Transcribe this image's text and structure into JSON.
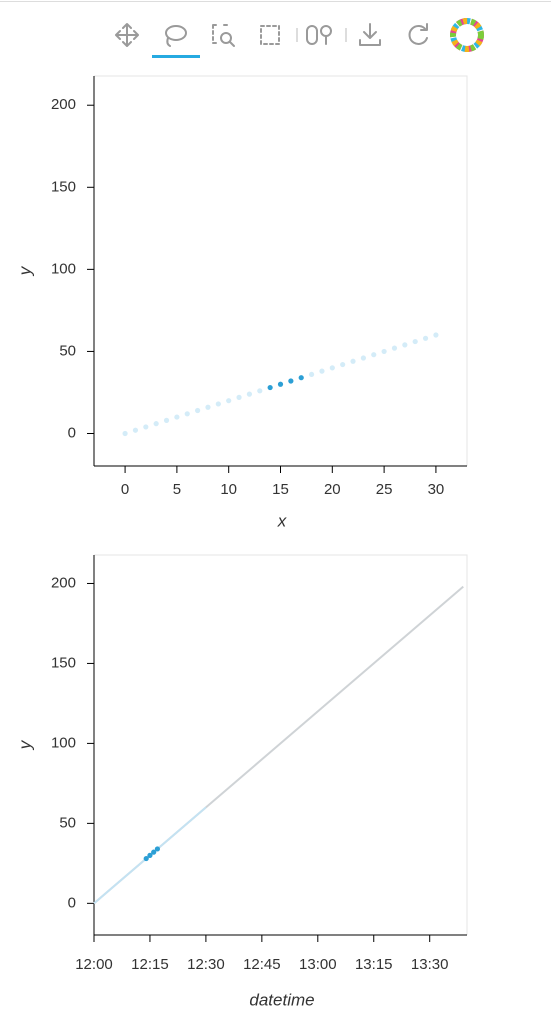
{
  "chart_data": [
    {
      "type": "scatter",
      "xlabel": "x",
      "ylabel": "y",
      "xlim": [
        -3,
        33
      ],
      "ylim": [
        -19.8,
        217.8
      ],
      "xticks": [
        0,
        5,
        10,
        15,
        20,
        25,
        30
      ],
      "yticks": [
        0,
        50,
        100,
        150,
        200
      ],
      "series": [
        {
          "color": "#d4ecf8",
          "x": [
            0,
            1,
            2,
            3,
            4,
            5,
            6,
            7,
            8,
            9,
            10,
            11,
            12,
            13,
            18,
            19,
            20,
            21,
            22,
            23,
            24,
            25,
            26,
            27,
            28,
            29,
            30
          ],
          "values": [
            0,
            2,
            4,
            6,
            8,
            10,
            12,
            14,
            16,
            18,
            20,
            22,
            24,
            26,
            36,
            38,
            40,
            42,
            44,
            46,
            48,
            50,
            52,
            54,
            56,
            58,
            60
          ]
        },
        {
          "color": "#2c9fd5",
          "x": [
            14,
            15,
            16,
            17
          ],
          "values": [
            28,
            30,
            32,
            34
          ]
        }
      ]
    },
    {
      "type": "line",
      "xlabel": "datetime",
      "ylabel": "y",
      "xlim": [
        "12:00",
        "13:40"
      ],
      "ylim": [
        -19.8,
        217.8
      ],
      "xticks": [
        "12:00",
        "12:15",
        "12:30",
        "12:45",
        "13:00",
        "13:15",
        "13:30"
      ],
      "yticks": [
        0,
        50,
        100,
        150,
        200
      ],
      "series": [
        {
          "type": "line",
          "color": "#cfd3d6",
          "x": [
            "12:00",
            "13:39"
          ],
          "values": [
            0,
            198
          ]
        },
        {
          "type": "line",
          "color": "#c4e2f2",
          "x": [
            "12:00",
            "12:30"
          ],
          "values": [
            0,
            60
          ]
        },
        {
          "type": "scatter",
          "color": "#2c9fd5",
          "x": [
            "12:14",
            "12:15",
            "12:16",
            "12:17"
          ],
          "values": [
            28,
            30,
            32,
            34
          ]
        }
      ]
    }
  ]
}
